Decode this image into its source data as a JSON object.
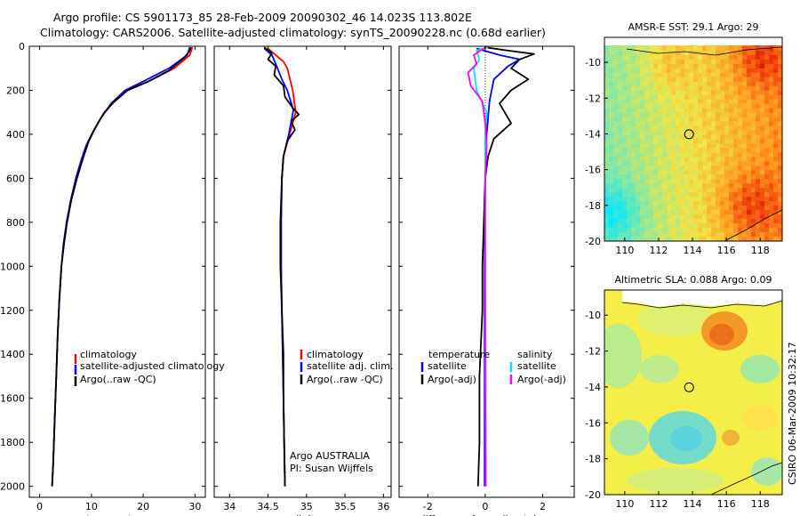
{
  "header": {
    "line1": "Argo profile: CS 5901173_85 28-Feb-2009 20090302_46 14.023S 113.802E",
    "line2": "Climatology: CARS2006. Satellite-adjusted climatology: synTS_20090228.nc (0.68d earlier)"
  },
  "footer": {
    "credit_line1": "Argo AUSTRALIA",
    "credit_line2": "PI: Susan Wijffels",
    "stamp": "CSIRO 06-Mar-2009 10:32:17"
  },
  "colors": {
    "climatology": "#ff0000",
    "satellite": "#0000ff",
    "argo": "#000000",
    "satellite_diff_salinity": "#00e0ff",
    "argo_diff_salinity": "#ff00ff"
  },
  "chart_data": [
    {
      "type": "line",
      "name": "temperature-profile",
      "xlabel": "temperature",
      "ylabel": "",
      "xlim": [
        -2,
        32
      ],
      "ylim": [
        2050,
        0
      ],
      "xticks": [
        "0",
        "10",
        "20",
        "30"
      ],
      "xtick_values": [
        0,
        10,
        20,
        30
      ],
      "yticks": [
        "0",
        "200",
        "400",
        "600",
        "800",
        "1000",
        "1200",
        "1400",
        "1600",
        "1800",
        "2000"
      ],
      "ytick_values": [
        0,
        200,
        400,
        600,
        800,
        1000,
        1200,
        1400,
        1600,
        1800,
        2000
      ],
      "legend": [
        "climatology",
        "satellite-adjusted climatology",
        "Argo(..raw -QC)"
      ],
      "series": [
        {
          "name": "climatology",
          "points": [
            [
              29.5,
              5
            ],
            [
              29,
              40
            ],
            [
              26,
              100
            ],
            [
              21,
              160
            ],
            [
              17,
              200
            ],
            [
              14,
              260
            ],
            [
              12,
              320
            ],
            [
              10.5,
              380
            ],
            [
              9,
              450
            ],
            [
              8,
              520
            ],
            [
              7,
              600
            ],
            [
              6,
              700
            ],
            [
              5.2,
              800
            ],
            [
              4.6,
              900
            ],
            [
              4.2,
              1000
            ],
            [
              3.8,
              1150
            ],
            [
              3.5,
              1300
            ],
            [
              3.2,
              1500
            ],
            [
              2.9,
              1700
            ],
            [
              2.6,
              1900
            ],
            [
              2.4,
              2000
            ]
          ]
        },
        {
          "name": "satellite-adjusted climatology",
          "points": [
            [
              29,
              5
            ],
            [
              28.5,
              40
            ],
            [
              25,
              100
            ],
            [
              20,
              160
            ],
            [
              16.5,
              200
            ],
            [
              13.8,
              260
            ],
            [
              12,
              320
            ],
            [
              10.5,
              380
            ],
            [
              9,
              450
            ],
            [
              8,
              520
            ],
            [
              7,
              600
            ],
            [
              6,
              700
            ],
            [
              5.2,
              800
            ],
            [
              4.6,
              900
            ],
            [
              4.2,
              1000
            ],
            [
              3.8,
              1150
            ],
            [
              3.5,
              1300
            ],
            [
              3.2,
              1500
            ],
            [
              2.9,
              1700
            ],
            [
              2.6,
              1900
            ],
            [
              2.4,
              2000
            ]
          ]
        },
        {
          "name": "Argo(..raw -QC)",
          "points": [
            [
              29.2,
              5
            ],
            [
              29,
              20
            ],
            [
              28,
              50
            ],
            [
              25,
              110
            ],
            [
              21,
              160
            ],
            [
              17,
              200
            ],
            [
              14.5,
              250
            ],
            [
              12.5,
              300
            ],
            [
              11,
              360
            ],
            [
              9.5,
              430
            ],
            [
              8.5,
              500
            ],
            [
              7.2,
              600
            ],
            [
              6.1,
              700
            ],
            [
              5.3,
              800
            ],
            [
              4.7,
              900
            ],
            [
              4.2,
              1000
            ],
            [
              3.8,
              1150
            ],
            [
              3.5,
              1300
            ],
            [
              3.2,
              1500
            ],
            [
              2.9,
              1700
            ],
            [
              2.6,
              1900
            ],
            [
              2.4,
              2000
            ]
          ]
        }
      ]
    },
    {
      "type": "line",
      "name": "salinity-profile",
      "xlabel": "salinity",
      "ylabel": "",
      "xlim": [
        33.8,
        36.1
      ],
      "ylim": [
        2050,
        0
      ],
      "xticks": [
        "34",
        "34.5",
        "35",
        "35.5",
        "36"
      ],
      "xtick_values": [
        34,
        34.5,
        35,
        35.5,
        36
      ],
      "legend": [
        "climatology",
        "satellite adj. clim.",
        "Argo(..raw -QC)"
      ],
      "series": [
        {
          "name": "climatology",
          "points": [
            [
              34.5,
              10
            ],
            [
              34.6,
              40
            ],
            [
              34.7,
              70
            ],
            [
              34.75,
              100
            ],
            [
              34.82,
              200
            ],
            [
              34.86,
              300
            ],
            [
              34.78,
              400
            ],
            [
              34.7,
              500
            ],
            [
              34.68,
              600
            ],
            [
              34.67,
              800
            ],
            [
              34.67,
              1000
            ],
            [
              34.68,
              1200
            ],
            [
              34.69,
              1400
            ],
            [
              34.7,
              1600
            ],
            [
              34.71,
              1800
            ],
            [
              34.72,
              2000
            ]
          ]
        },
        {
          "name": "satellite adj. clim.",
          "points": [
            [
              34.45,
              10
            ],
            [
              34.55,
              40
            ],
            [
              34.6,
              80
            ],
            [
              34.68,
              150
            ],
            [
              34.75,
              200
            ],
            [
              34.83,
              290
            ],
            [
              34.77,
              400
            ],
            [
              34.7,
              500
            ],
            [
              34.68,
              600
            ],
            [
              34.67,
              800
            ],
            [
              34.67,
              1000
            ],
            [
              34.68,
              1200
            ],
            [
              34.69,
              1400
            ],
            [
              34.7,
              1600
            ],
            [
              34.71,
              1800
            ],
            [
              34.72,
              2000
            ]
          ]
        },
        {
          "name": "Argo(..raw -QC)",
          "points": [
            [
              34.45,
              5
            ],
            [
              34.55,
              30
            ],
            [
              34.5,
              60
            ],
            [
              34.6,
              90
            ],
            [
              34.58,
              130
            ],
            [
              34.7,
              180
            ],
            [
              34.72,
              230
            ],
            [
              34.82,
              280
            ],
            [
              34.9,
              310
            ],
            [
              34.8,
              340
            ],
            [
              34.85,
              380
            ],
            [
              34.75,
              430
            ],
            [
              34.7,
              500
            ],
            [
              34.68,
              600
            ],
            [
              34.66,
              800
            ],
            [
              34.66,
              1000
            ],
            [
              34.68,
              1200
            ],
            [
              34.7,
              1400
            ],
            [
              34.7,
              1600
            ],
            [
              34.71,
              1800
            ],
            [
              34.72,
              2000
            ]
          ]
        }
      ]
    },
    {
      "type": "line",
      "name": "difference-from-climatology",
      "xlabel": "difference from climatology",
      "ylabel": "",
      "xlim": [
        -3,
        3.1
      ],
      "ylim": [
        2050,
        0
      ],
      "xticks": [
        "-2",
        "0",
        "2"
      ],
      "xtick_values": [
        -2,
        0,
        2
      ],
      "legend_titles": [
        "temperature",
        "salinity"
      ],
      "legend": [
        "satellite",
        "Argo(-adj)",
        "satellite",
        "Argo(-adj)"
      ],
      "series": [
        {
          "name": "temperature satellite",
          "points": [
            [
              -0.3,
              10
            ],
            [
              0.5,
              40
            ],
            [
              1.2,
              60
            ],
            [
              0.8,
              90
            ],
            [
              0.3,
              150
            ],
            [
              0.15,
              250
            ],
            [
              0.05,
              400
            ],
            [
              0.0,
              600
            ],
            [
              -0.02,
              1000
            ],
            [
              -0.02,
              1500
            ],
            [
              -0.02,
              2000
            ]
          ]
        },
        {
          "name": "temperature Argo(-adj)",
          "points": [
            [
              0,
              5
            ],
            [
              0.8,
              20
            ],
            [
              1.7,
              35
            ],
            [
              1.2,
              60
            ],
            [
              0.9,
              100
            ],
            [
              1.5,
              150
            ],
            [
              0.9,
              200
            ],
            [
              0.5,
              260
            ],
            [
              0.9,
              350
            ],
            [
              0.3,
              420
            ],
            [
              0.1,
              500
            ],
            [
              0.0,
              600
            ],
            [
              -0.05,
              800
            ],
            [
              -0.1,
              1000
            ],
            [
              -0.1,
              1200
            ],
            [
              -0.2,
              1500
            ],
            [
              -0.2,
              1800
            ],
            [
              -0.25,
              2000
            ]
          ]
        },
        {
          "name": "salinity satellite",
          "points": [
            [
              0.1,
              5
            ],
            [
              -0.3,
              20
            ],
            [
              -0.2,
              60
            ],
            [
              -0.4,
              100
            ],
            [
              -0.3,
              200
            ],
            [
              0.05,
              300
            ],
            [
              0.0,
              400
            ],
            [
              0.0,
              600
            ],
            [
              0.0,
              1000
            ],
            [
              0.02,
              1500
            ],
            [
              0.02,
              2000
            ]
          ]
        },
        {
          "name": "salinity Argo(-adj)",
          "points": [
            [
              0,
              5
            ],
            [
              -0.4,
              40
            ],
            [
              -0.3,
              80
            ],
            [
              -0.6,
              120
            ],
            [
              -0.5,
              180
            ],
            [
              -0.1,
              250
            ],
            [
              0.0,
              350
            ],
            [
              0.05,
              450
            ],
            [
              0.0,
              600
            ],
            [
              0.0,
              1000
            ],
            [
              0.0,
              1500
            ],
            [
              0.02,
              2000
            ]
          ]
        }
      ]
    },
    {
      "type": "heatmap",
      "name": "amsre-sst-map",
      "title": "AMSR-E SST: 29.1 Argo: 29",
      "xlim": [
        108.8,
        119.3
      ],
      "ylim": [
        -20,
        -8.6
      ],
      "xticks": [
        "110",
        "112",
        "114",
        "116",
        "118"
      ],
      "xtick_values": [
        110,
        112,
        114,
        116,
        118
      ],
      "yticks": [
        "-10",
        "-12",
        "-14",
        "-16",
        "-18",
        "-20"
      ],
      "ytick_values": [
        -10,
        -12,
        -14,
        -16,
        -18,
        -20
      ],
      "marker": {
        "lon": 113.8,
        "lat": -14.02
      }
    },
    {
      "type": "heatmap",
      "name": "altimetric-sla-map",
      "title": "Altimetric SLA: 0.088 Argo: 0.09",
      "xlim": [
        108.8,
        119.3
      ],
      "ylim": [
        -20,
        -8.6
      ],
      "xticks": [
        "110",
        "112",
        "114",
        "116",
        "118"
      ],
      "xtick_values": [
        110,
        112,
        114,
        116,
        118
      ],
      "yticks": [
        "-10",
        "-12",
        "-14",
        "-16",
        "-18",
        "-20"
      ],
      "ytick_values": [
        -10,
        -12,
        -14,
        -16,
        -18,
        -20
      ],
      "marker": {
        "lon": 113.8,
        "lat": -14.02
      }
    }
  ]
}
